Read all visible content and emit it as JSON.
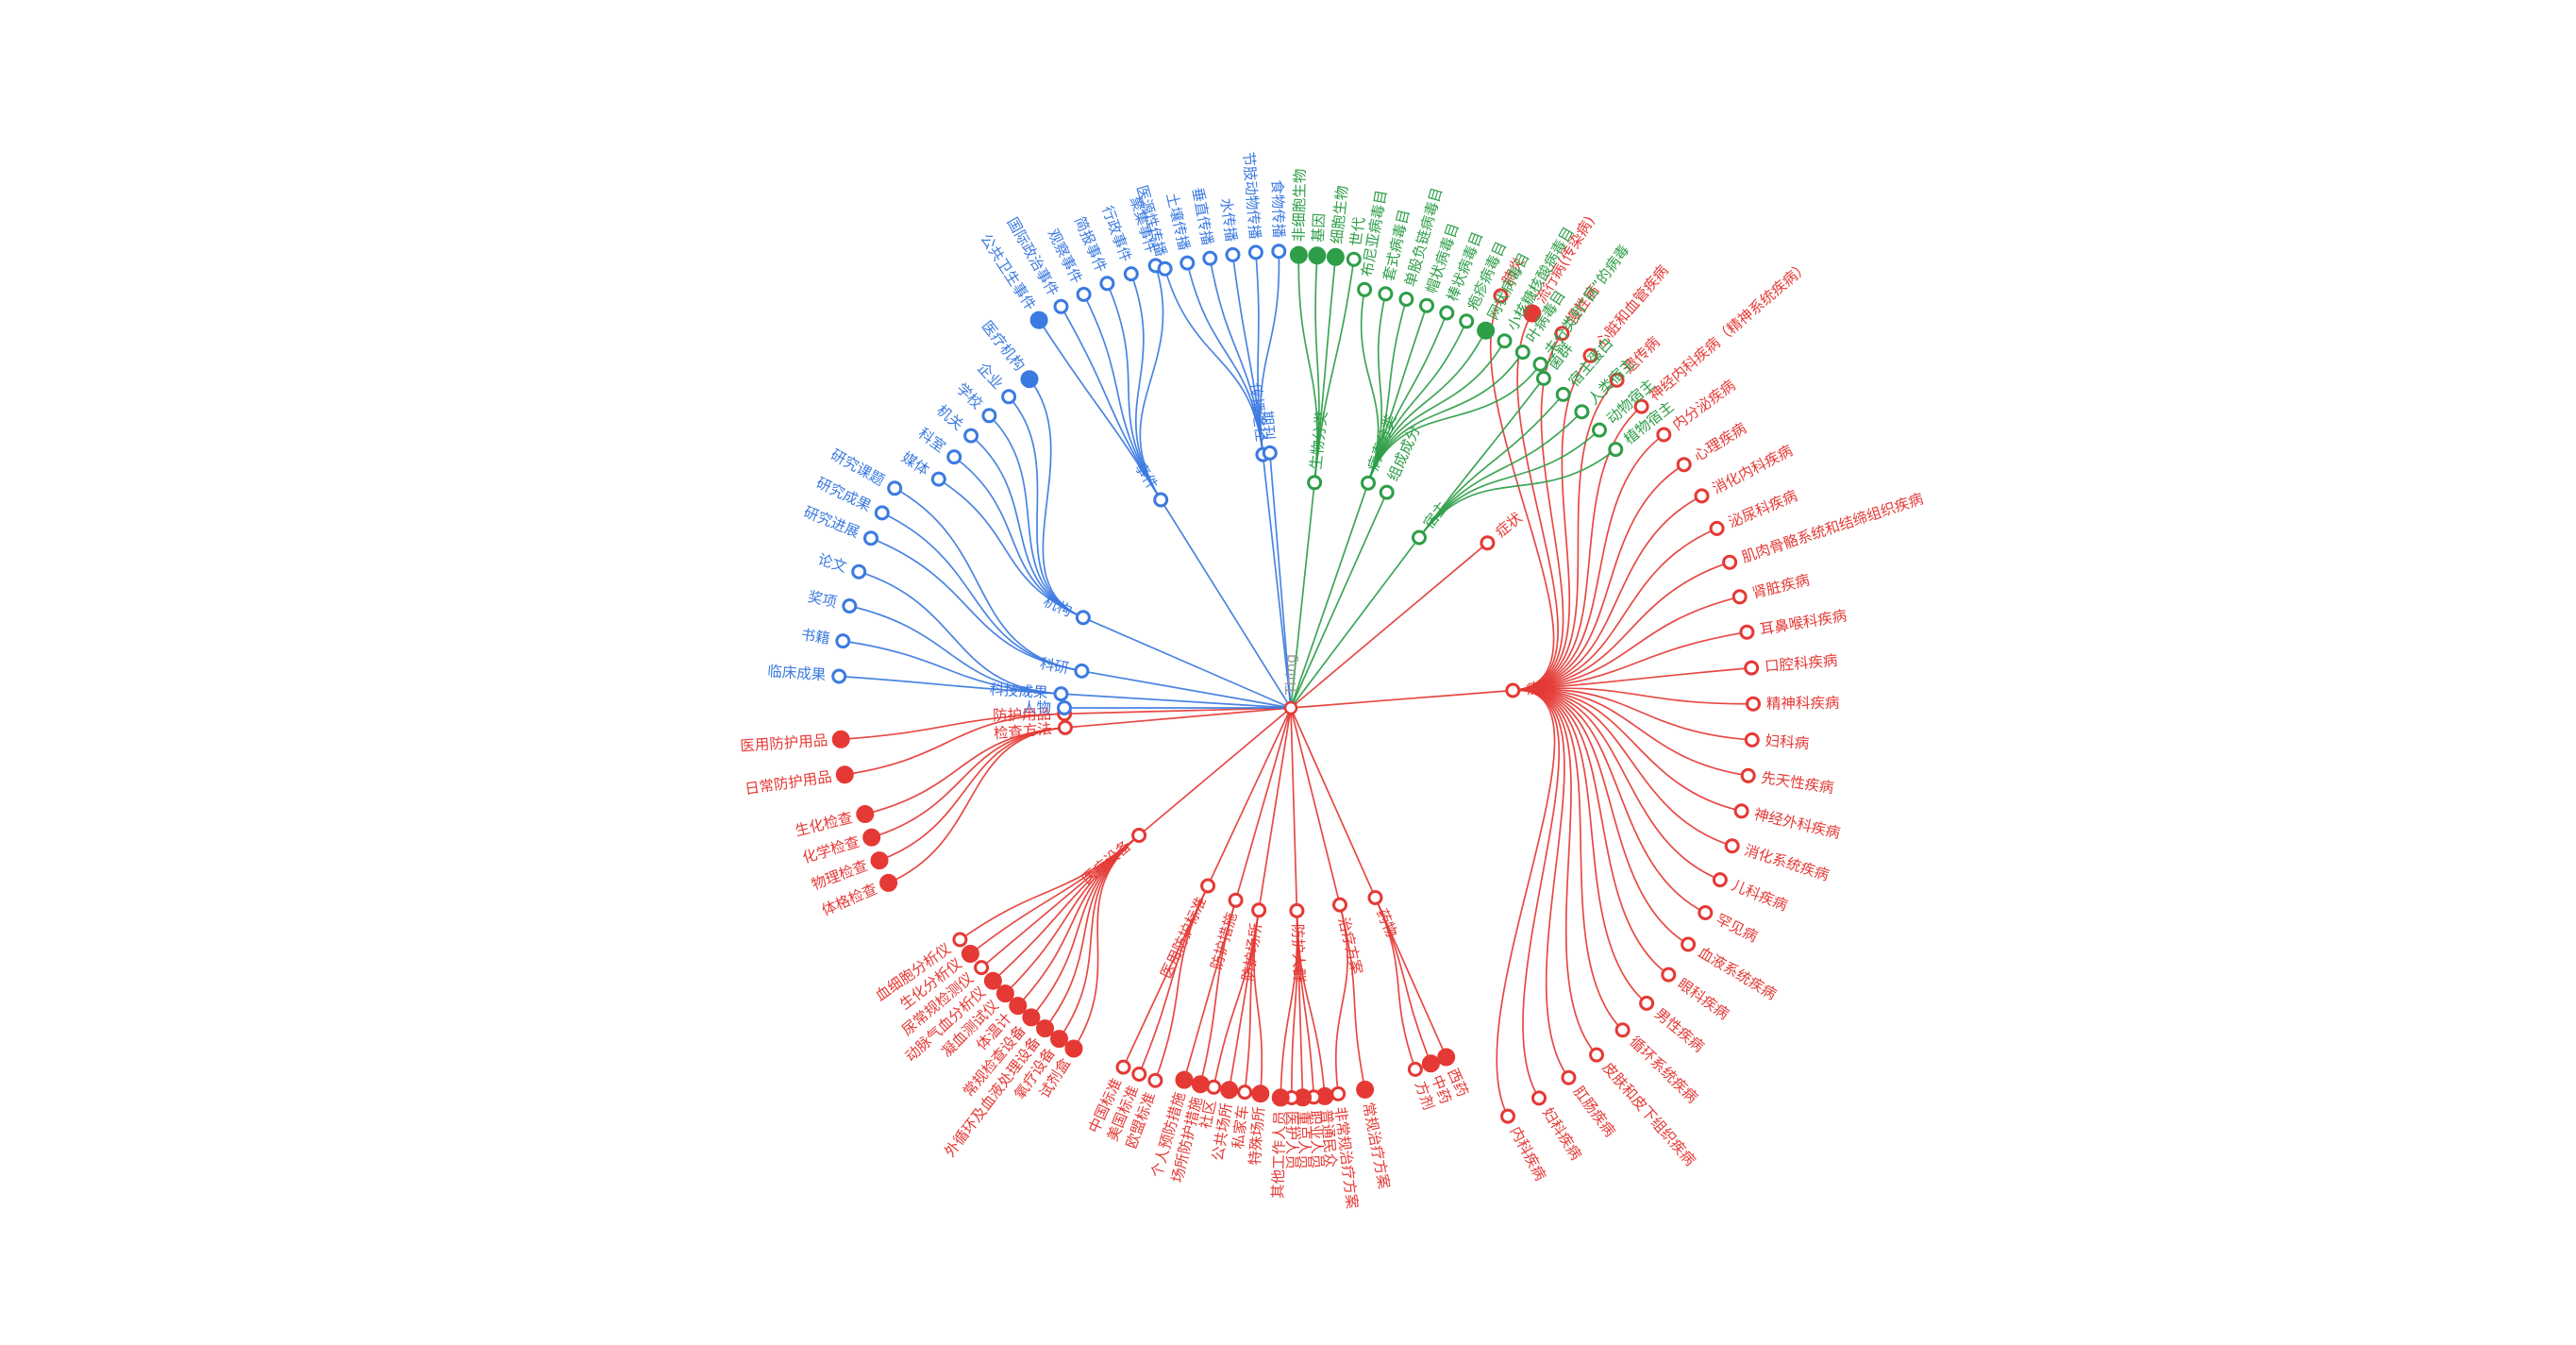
{
  "colors": {
    "red": "#e53935",
    "blue": "#3b7ae0",
    "green": "#2e9e48",
    "root": "#d6d6d6"
  },
  "tree": {
    "name": "Thing",
    "children": [
      {
        "name": "症状",
        "color": "red",
        "children": []
      },
      {
        "name": "疾病",
        "color": "red",
        "children": [
          {
            "name": "肺炎"
          },
          {
            "name": "流行病(传染病)",
            "filled": true
          },
          {
            "name": "慢性病"
          },
          {
            "name": "心脏和血管疾病"
          },
          {
            "name": "遗传病"
          },
          {
            "name": "神经内科疾病（精神系统疾病）"
          },
          {
            "name": "内分泌疾病"
          },
          {
            "name": "心理疾病"
          },
          {
            "name": "消化内科疾病"
          },
          {
            "name": "泌尿科疾病"
          },
          {
            "name": "肌肉骨骼系统和结缔组织疾病"
          },
          {
            "name": "肾脏疾病"
          },
          {
            "name": "耳鼻喉科疾病"
          },
          {
            "name": "口腔科疾病"
          },
          {
            "name": "精神科疾病"
          },
          {
            "name": "妇科病"
          },
          {
            "name": "先天性疾病"
          },
          {
            "name": "神经外科疾病"
          },
          {
            "name": "消化系统疾病"
          },
          {
            "name": "儿科疾病"
          },
          {
            "name": "罕见病"
          },
          {
            "name": "血液系统疾病"
          },
          {
            "name": "眼科疾病"
          },
          {
            "name": "男性疾病"
          },
          {
            "name": "循环系统疾病"
          },
          {
            "name": "皮肤和皮下组织疾病"
          },
          {
            "name": "肛肠疾病"
          },
          {
            "name": "妇科疾病"
          },
          {
            "name": "内科疾病"
          }
        ]
      },
      {
        "name": "药物",
        "color": "red",
        "children": [
          {
            "name": "方剂"
          },
          {
            "name": "中药",
            "filled": true
          },
          {
            "name": "西药",
            "filled": true
          }
        ]
      },
      {
        "name": "治疗方案",
        "color": "red",
        "children": [
          {
            "name": "常规治疗方案",
            "filled": true
          },
          {
            "name": "非常规治疗方案"
          }
        ]
      },
      {
        "name": "防护人群",
        "color": "red",
        "children": [
          {
            "name": "普通民众",
            "filled": true
          },
          {
            "name": "职业人员"
          },
          {
            "name": "重点人员",
            "filled": true
          },
          {
            "name": "医护人员"
          },
          {
            "name": "其他工作人员",
            "filled": true
          }
        ]
      },
      {
        "name": "防护场所",
        "color": "red",
        "children": [
          {
            "name": "特殊场所",
            "filled": true
          },
          {
            "name": "私家车"
          },
          {
            "name": "公共场所",
            "filled": true
          },
          {
            "name": "社区"
          }
        ]
      },
      {
        "name": "防护措施",
        "color": "red",
        "children": [
          {
            "name": "场所防护措施",
            "filled": true
          },
          {
            "name": "个人预防措施",
            "filled": true
          }
        ]
      },
      {
        "name": "医用防护标准",
        "color": "red",
        "children": [
          {
            "name": "欧盟标准"
          },
          {
            "name": "美国标准"
          },
          {
            "name": "中国标准"
          }
        ]
      },
      {
        "name": "医疗设备",
        "color": "red",
        "children": [
          {
            "name": "试剂盒",
            "filled": true
          },
          {
            "name": "氧疗设备",
            "filled": true
          },
          {
            "name": "外循环及血液处理设备",
            "filled": true
          },
          {
            "name": "常规检查设备",
            "filled": true
          },
          {
            "name": "体温计",
            "filled": true
          },
          {
            "name": "凝血测试仪",
            "filled": true
          },
          {
            "name": "动脉气血分析仪",
            "filled": true
          },
          {
            "name": "尿常规检测仪"
          },
          {
            "name": "生化分析仪",
            "filled": true
          },
          {
            "name": "血细胞分析仪"
          }
        ]
      },
      {
        "name": "检查方法",
        "color": "red",
        "children": [
          {
            "name": "体格检查",
            "filled": true
          },
          {
            "name": "物理检查",
            "filled": true
          },
          {
            "name": "化学检查",
            "filled": true
          },
          {
            "name": "生化检查",
            "filled": true
          }
        ]
      },
      {
        "name": "防护用品",
        "color": "red",
        "children": [
          {
            "name": "日常防护用品",
            "filled": true
          },
          {
            "name": "医用防护用品",
            "filled": true
          }
        ]
      },
      {
        "name": "人物",
        "color": "blue",
        "children": []
      },
      {
        "name": "科技成果",
        "color": "blue",
        "children": [
          {
            "name": "临床成果"
          },
          {
            "name": "书籍"
          },
          {
            "name": "奖项"
          },
          {
            "name": "论文"
          }
        ]
      },
      {
        "name": "科研",
        "color": "blue",
        "children": [
          {
            "name": "研究进展"
          },
          {
            "name": "研究成果"
          },
          {
            "name": "研究课题"
          }
        ]
      },
      {
        "name": "机构",
        "color": "blue",
        "children": [
          {
            "name": "媒体"
          },
          {
            "name": "科室"
          },
          {
            "name": "机关"
          },
          {
            "name": "学校"
          },
          {
            "name": "企业"
          },
          {
            "name": "医疗机构",
            "filled": true
          }
        ]
      },
      {
        "name": "事件",
        "color": "blue",
        "children": [
          {
            "name": "公共卫生事件",
            "filled": true
          },
          {
            "name": "国际政治事件"
          },
          {
            "name": "观察事件"
          },
          {
            "name": "简报事件"
          },
          {
            "name": "行政事件"
          },
          {
            "name": "聚集事件"
          }
        ]
      },
      {
        "name": "传播途径",
        "color": "blue",
        "children": [
          {
            "name": "医源性传播"
          },
          {
            "name": "土壤传播"
          },
          {
            "name": "垂直传播"
          },
          {
            "name": "水传播"
          },
          {
            "name": "节肢动物传播"
          },
          {
            "name": "食物传播"
          }
        ]
      },
      {
        "name": "期刊",
        "color": "blue",
        "children": []
      },
      {
        "name": "生物分类",
        "color": "green",
        "children": [
          {
            "name": "非细胞生物",
            "filled": true
          },
          {
            "name": "基因",
            "filled": true
          },
          {
            "name": "细胞生物",
            "filled": true
          },
          {
            "name": "世代"
          }
        ]
      },
      {
        "name": "病毒分类",
        "color": "green",
        "children": [
          {
            "name": "布尼亚病毒目"
          },
          {
            "name": "套式病毒目"
          },
          {
            "name": "单股负链病毒目"
          },
          {
            "name": "帽状病毒目"
          },
          {
            "name": "棒状病毒目"
          },
          {
            "name": "疱疹病毒目"
          },
          {
            "name": "网状病毒目",
            "filled": true
          },
          {
            "name": "小核糖核酸病毒目"
          },
          {
            "name": "叶病毒目"
          },
          {
            "name": "未分类到“目”的病毒"
          }
        ]
      },
      {
        "name": "组成成分",
        "color": "green",
        "children": []
      },
      {
        "name": "宿主",
        "color": "green",
        "children": [
          {
            "name": "菌群"
          },
          {
            "name": "宿主蛋白"
          },
          {
            "name": "人类宿主"
          },
          {
            "name": "动物宿主"
          },
          {
            "name": "植物宿主"
          }
        ]
      }
    ]
  }
}
